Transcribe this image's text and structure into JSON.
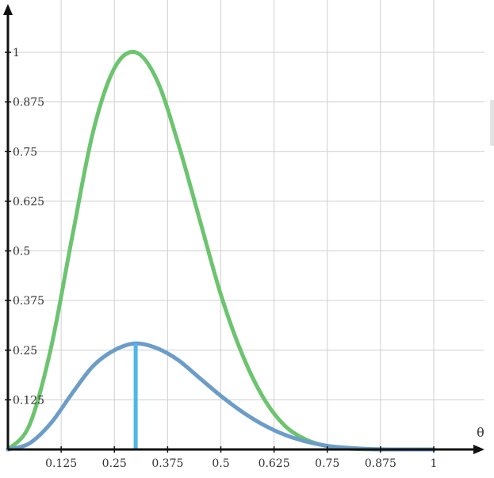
{
  "chart_data": {
    "type": "line",
    "title": "",
    "xlabel": "θ",
    "ylabel": "",
    "xlim": [
      0,
      1.125
    ],
    "ylim": [
      0,
      1.125
    ],
    "x_ticks": [
      {
        "value": 0.125,
        "label": "0.125"
      },
      {
        "value": 0.25,
        "label": "0.25"
      },
      {
        "value": 0.375,
        "label": "0.375"
      },
      {
        "value": 0.5,
        "label": "0.5"
      },
      {
        "value": 0.625,
        "label": "0.625"
      },
      {
        "value": 0.75,
        "label": "0.75"
      },
      {
        "value": 0.875,
        "label": "0.875"
      },
      {
        "value": 1,
        "label": "1"
      }
    ],
    "y_ticks": [
      {
        "value": 0.125,
        "label": "0.125"
      },
      {
        "value": 0.25,
        "label": "0.25"
      },
      {
        "value": 0.375,
        "label": "0.375"
      },
      {
        "value": 0.5,
        "label": "0.5"
      },
      {
        "value": 0.625,
        "label": "0.625"
      },
      {
        "value": 0.75,
        "label": "0.75"
      },
      {
        "value": 0.875,
        "label": "0.875"
      },
      {
        "value": 1,
        "label": "1"
      }
    ],
    "grid": true,
    "series": [
      {
        "color": "#6cc46f",
        "x": [
          0,
          0.05,
          0.1,
          0.15,
          0.2,
          0.25,
          0.3,
          0.35,
          0.4,
          0.45,
          0.5,
          0.55,
          0.6,
          0.65,
          0.7,
          0.75,
          0.8,
          0.85,
          0.9,
          0.95,
          1
        ],
        "y": [
          0,
          0.06,
          0.25,
          0.53,
          0.8,
          0.96,
          1.0,
          0.93,
          0.77,
          0.58,
          0.39,
          0.24,
          0.13,
          0.06,
          0.025,
          0.008,
          0.002,
          0.0004,
          0,
          0,
          0
        ]
      },
      {
        "color": "#6b9dc8",
        "x": [
          0,
          0.05,
          0.1,
          0.15,
          0.2,
          0.25,
          0.3,
          0.35,
          0.4,
          0.45,
          0.5,
          0.55,
          0.6,
          0.65,
          0.7,
          0.75,
          0.8,
          0.85,
          0.9,
          0.95,
          1
        ],
        "y": [
          0,
          0.015,
          0.065,
          0.14,
          0.21,
          0.25,
          0.267,
          0.255,
          0.225,
          0.18,
          0.135,
          0.095,
          0.062,
          0.037,
          0.02,
          0.009,
          0.004,
          0.001,
          0,
          0,
          0
        ]
      }
    ],
    "marker_line": {
      "x": 0.3,
      "y": 0.267,
      "color": "#4fb6ea"
    }
  }
}
